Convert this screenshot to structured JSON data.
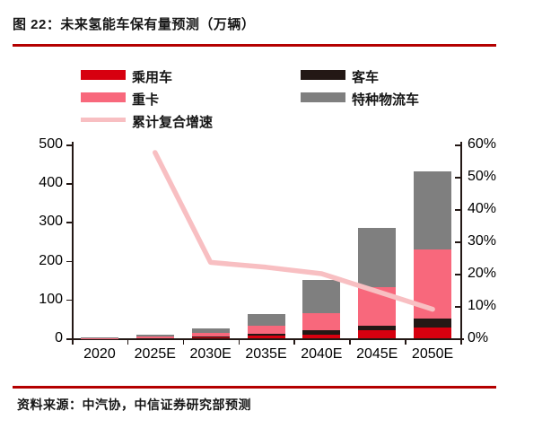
{
  "header": {
    "title": "图 22：未来氢能车保有量预测（万辆）",
    "rule_color": "#b40000"
  },
  "legend": {
    "items": [
      {
        "label": "乘用车",
        "color": "#d7000f",
        "swatch": "bar",
        "col": 1,
        "row": 1
      },
      {
        "label": "客车",
        "color": "#231815",
        "swatch": "bar",
        "col": 2,
        "row": 1
      },
      {
        "label": "重卡",
        "color": "#f8687c",
        "swatch": "bar",
        "col": 1,
        "row": 2
      },
      {
        "label": "特种物流车",
        "color": "#7f7f7f",
        "swatch": "bar",
        "col": 2,
        "row": 2
      },
      {
        "label": "累计复合增速",
        "color": "#f8bfc2",
        "swatch": "line",
        "col": 1,
        "row": 3
      }
    ]
  },
  "chart_data": {
    "type": "bar",
    "subtype": "stacked bars with line on secondary axis",
    "categories": [
      "2020",
      "2025E",
      "2030E",
      "2035E",
      "2040E",
      "2045E",
      "2050E"
    ],
    "series": [
      {
        "name": "乘用车",
        "type": "bar",
        "axis": "left",
        "color": "#d7000f",
        "values": [
          0,
          0.5,
          2,
          6,
          10,
          20,
          28
        ]
      },
      {
        "name": "客车",
        "type": "bar",
        "axis": "left",
        "color": "#231815",
        "values": [
          0,
          0.5,
          2,
          5,
          10,
          13,
          22
        ]
      },
      {
        "name": "重卡",
        "type": "bar",
        "axis": "left",
        "color": "#f8687c",
        "values": [
          1,
          4,
          9,
          21,
          45,
          100,
          180
        ]
      },
      {
        "name": "特种物流车",
        "type": "bar",
        "axis": "left",
        "color": "#7f7f7f",
        "values": [
          0.5,
          5,
          12,
          30,
          85,
          152,
          200
        ]
      },
      {
        "name": "累计复合增速",
        "type": "line",
        "axis": "right",
        "color": "#f8bfc2",
        "values": [
          null,
          57.5,
          23.5,
          22,
          20,
          14.5,
          9
        ]
      }
    ],
    "left_axis": {
      "min": 0,
      "max": 500,
      "step": 100,
      "tick_labels": [
        "0",
        "100",
        "200",
        "300",
        "400",
        "500"
      ]
    },
    "right_axis": {
      "min": 0,
      "max": 60,
      "step": 10,
      "tick_labels": [
        "0%",
        "10%",
        "20%",
        "30%",
        "40%",
        "50%",
        "60%"
      ]
    },
    "title": "未来氢能车保有量预测（万辆）",
    "grid": false,
    "legend_position": "top"
  },
  "footer": {
    "source": "资料来源：中汽协，中信证券研究部预测"
  }
}
